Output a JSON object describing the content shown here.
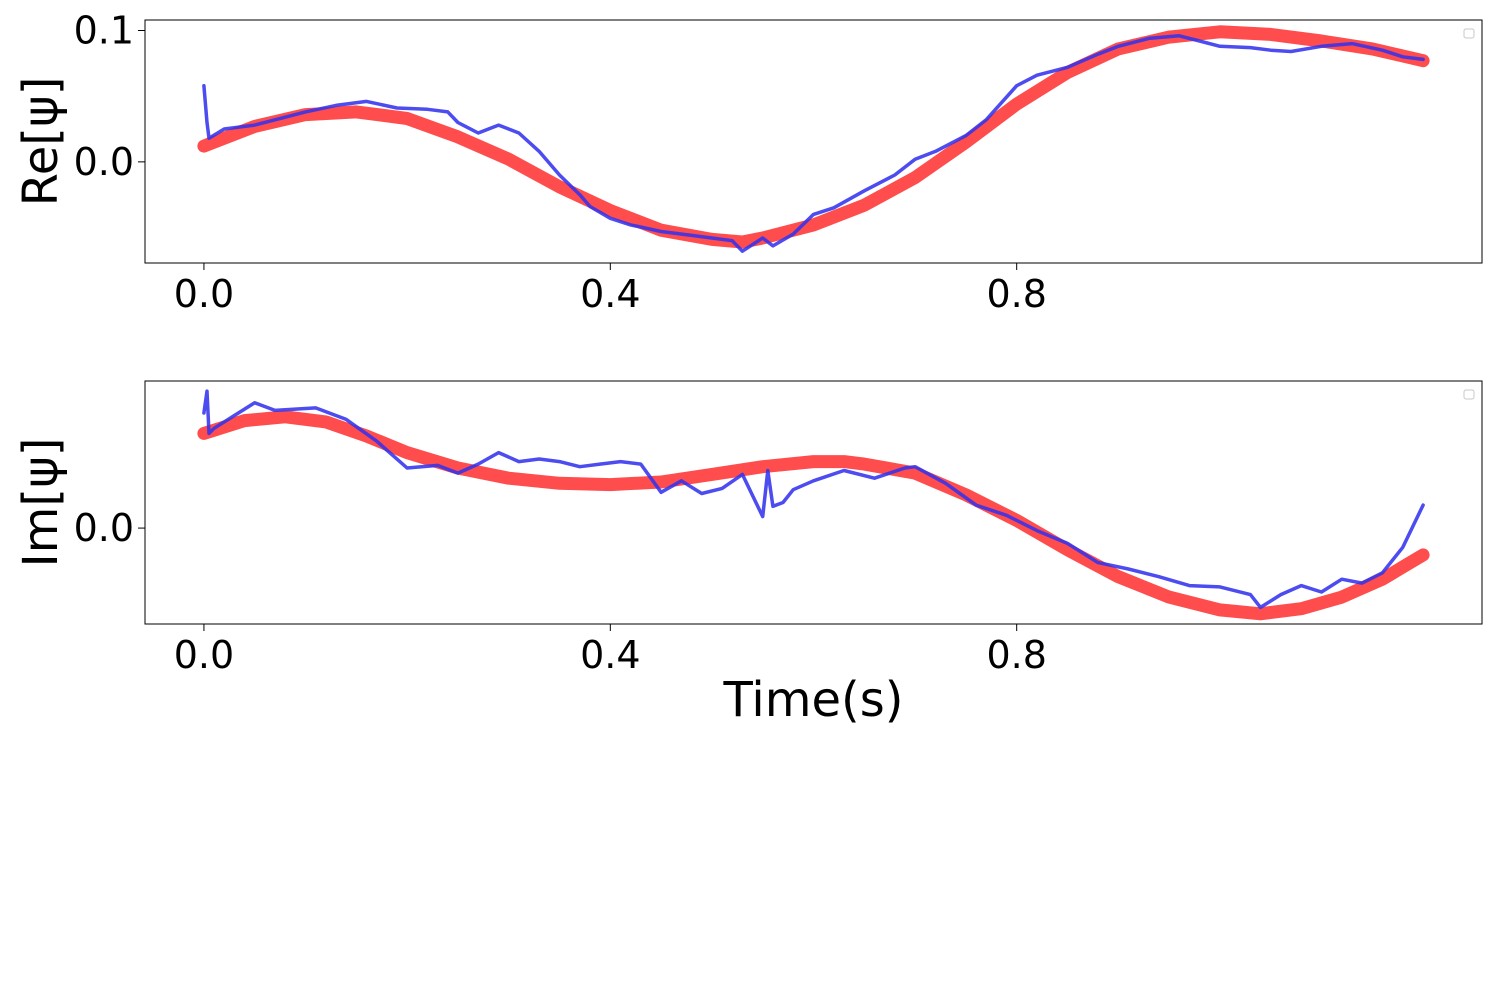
{
  "chart_data": [
    {
      "type": "line",
      "ylabel": "Re[ψ]",
      "xlabel": "",
      "xlim": [
        -0.058,
        1.258
      ],
      "ylim": [
        -0.077,
        0.108
      ],
      "xticks": [
        0.0,
        0.4,
        0.8
      ],
      "xtick_labels": [
        "0.0",
        "0.4",
        "0.8"
      ],
      "yticks": [
        0.0,
        0.1
      ],
      "ytick_labels": [
        "0.0",
        "0.1"
      ],
      "legend": "top-right (empty)",
      "grid": false,
      "series": [
        {
          "style": "thick",
          "color": "#ff4d4d",
          "x": [
            0.0,
            0.05,
            0.1,
            0.15,
            0.2,
            0.25,
            0.3,
            0.35,
            0.4,
            0.45,
            0.5,
            0.53,
            0.55,
            0.6,
            0.65,
            0.7,
            0.75,
            0.8,
            0.85,
            0.9,
            0.95,
            1.0,
            1.05,
            1.1,
            1.15,
            1.2
          ],
          "y": [
            0.012,
            0.027,
            0.036,
            0.038,
            0.033,
            0.019,
            0.002,
            -0.019,
            -0.037,
            -0.052,
            -0.059,
            -0.061,
            -0.058,
            -0.048,
            -0.033,
            -0.012,
            0.015,
            0.044,
            0.068,
            0.086,
            0.095,
            0.099,
            0.097,
            0.092,
            0.086,
            0.077
          ]
        },
        {
          "style": "thin",
          "color": "#3333ee",
          "x": [
            0.0,
            0.003,
            0.005,
            0.02,
            0.05,
            0.08,
            0.1,
            0.13,
            0.16,
            0.19,
            0.22,
            0.24,
            0.25,
            0.27,
            0.29,
            0.31,
            0.33,
            0.35,
            0.37,
            0.38,
            0.4,
            0.42,
            0.45,
            0.48,
            0.5,
            0.52,
            0.53,
            0.55,
            0.56,
            0.58,
            0.6,
            0.62,
            0.65,
            0.68,
            0.7,
            0.72,
            0.75,
            0.77,
            0.8,
            0.82,
            0.85,
            0.88,
            0.9,
            0.93,
            0.96,
            0.98,
            1.0,
            1.03,
            1.05,
            1.07,
            1.1,
            1.13,
            1.16,
            1.18,
            1.2
          ],
          "y": [
            0.058,
            0.03,
            0.018,
            0.025,
            0.028,
            0.034,
            0.038,
            0.043,
            0.046,
            0.041,
            0.04,
            0.038,
            0.03,
            0.022,
            0.028,
            0.022,
            0.008,
            -0.01,
            -0.025,
            -0.034,
            -0.043,
            -0.048,
            -0.053,
            -0.056,
            -0.058,
            -0.06,
            -0.068,
            -0.058,
            -0.064,
            -0.055,
            -0.04,
            -0.035,
            -0.022,
            -0.01,
            0.002,
            0.008,
            0.02,
            0.032,
            0.058,
            0.066,
            0.072,
            0.082,
            0.088,
            0.094,
            0.096,
            0.092,
            0.088,
            0.087,
            0.085,
            0.084,
            0.088,
            0.09,
            0.085,
            0.08,
            0.078
          ]
        }
      ]
    },
    {
      "type": "line",
      "ylabel": "Im[ψ]",
      "xlabel": "Time(s)",
      "xlim": [
        -0.058,
        1.258
      ],
      "ylim": [
        -0.075,
        0.115
      ],
      "xticks": [
        0.0,
        0.4,
        0.8
      ],
      "xtick_labels": [
        "0.0",
        "0.4",
        "0.8"
      ],
      "yticks": [
        0.0
      ],
      "ytick_labels": [
        "0.0"
      ],
      "legend": "top-right (empty)",
      "grid": false,
      "series": [
        {
          "style": "thick",
          "color": "#ff4d4d",
          "x": [
            0.0,
            0.04,
            0.08,
            0.12,
            0.16,
            0.2,
            0.25,
            0.3,
            0.35,
            0.4,
            0.45,
            0.5,
            0.55,
            0.6,
            0.63,
            0.65,
            0.7,
            0.75,
            0.8,
            0.85,
            0.9,
            0.95,
            1.0,
            1.04,
            1.08,
            1.12,
            1.16,
            1.2
          ],
          "y": [
            0.074,
            0.084,
            0.087,
            0.083,
            0.072,
            0.059,
            0.047,
            0.039,
            0.035,
            0.034,
            0.036,
            0.042,
            0.048,
            0.052,
            0.052,
            0.05,
            0.043,
            0.026,
            0.006,
            -0.017,
            -0.038,
            -0.054,
            -0.064,
            -0.067,
            -0.063,
            -0.054,
            -0.04,
            -0.021
          ]
        },
        {
          "style": "thin",
          "color": "#3333ee",
          "x": [
            0.0,
            0.003,
            0.005,
            0.01,
            0.03,
            0.05,
            0.07,
            0.09,
            0.11,
            0.14,
            0.17,
            0.2,
            0.23,
            0.25,
            0.27,
            0.29,
            0.31,
            0.33,
            0.35,
            0.37,
            0.39,
            0.41,
            0.43,
            0.45,
            0.47,
            0.49,
            0.51,
            0.53,
            0.55,
            0.555,
            0.56,
            0.57,
            0.58,
            0.6,
            0.63,
            0.66,
            0.69,
            0.7,
            0.73,
            0.76,
            0.79,
            0.82,
            0.85,
            0.88,
            0.91,
            0.94,
            0.97,
            1.0,
            1.03,
            1.04,
            1.06,
            1.08,
            1.1,
            1.12,
            1.14,
            1.16,
            1.18,
            1.2
          ],
          "y": [
            0.09,
            0.107,
            0.074,
            0.078,
            0.088,
            0.098,
            0.092,
            0.093,
            0.094,
            0.085,
            0.068,
            0.047,
            0.049,
            0.043,
            0.05,
            0.059,
            0.052,
            0.054,
            0.052,
            0.048,
            0.05,
            0.052,
            0.05,
            0.028,
            0.037,
            0.027,
            0.031,
            0.042,
            0.009,
            0.045,
            0.017,
            0.02,
            0.03,
            0.037,
            0.045,
            0.039,
            0.047,
            0.048,
            0.035,
            0.018,
            0.01,
            -0.002,
            -0.012,
            -0.027,
            -0.032,
            -0.038,
            -0.045,
            -0.046,
            -0.052,
            -0.062,
            -0.052,
            -0.045,
            -0.05,
            -0.04,
            -0.043,
            -0.035,
            -0.015,
            0.018
          ]
        }
      ]
    }
  ]
}
